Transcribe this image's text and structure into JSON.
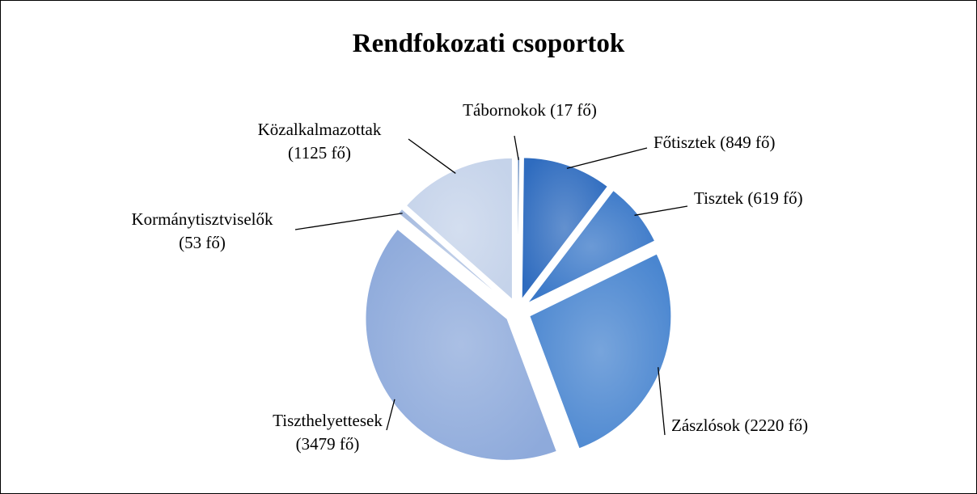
{
  "chart_data": {
    "type": "pie",
    "title": "Rendfokozati csoportok",
    "categories": [
      "Tábornokok",
      "Főtisztek",
      "Tisztek",
      "Zászlósok",
      "Tiszthelyettesek",
      "Kormánytisztviselők",
      "Közalkalmazottak"
    ],
    "values": [
      17,
      849,
      619,
      2220,
      3479,
      53,
      1125
    ],
    "value_labels": [
      "(17 fő)",
      "(849 fő)",
      "(619 fő)",
      "(2220 fő)",
      "(3479 fő)",
      "(53 fő)",
      "(1125 fő)"
    ],
    "colors": [
      "#2a5fa8",
      "#2f6cbf",
      "#3a78c8",
      "#4a86d0",
      "#8eaadb",
      "#a9bde0",
      "#c5d3ea"
    ]
  }
}
